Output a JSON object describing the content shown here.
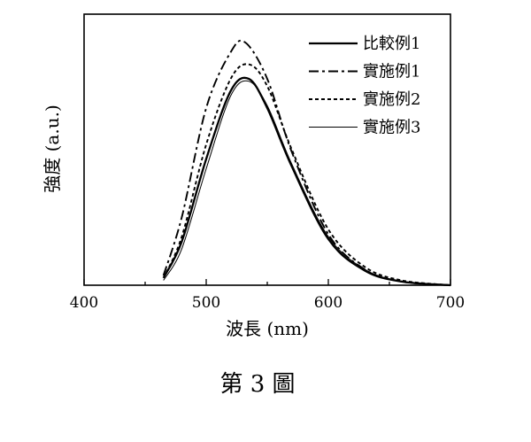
{
  "chart_data": {
    "type": "line",
    "title": "",
    "xlabel": "波長 (nm)",
    "ylabel": "強度 (a.u.)",
    "xlim": [
      400,
      700
    ],
    "ylim": [
      0,
      1.0
    ],
    "x_ticks": [
      400,
      500,
      600,
      700
    ],
    "y_ticks_shown": false,
    "grid": false,
    "legend_position": "top-right",
    "series": [
      {
        "name": "比較例1",
        "style": "solid-thick",
        "x": [
          465,
          480,
          500,
          520,
          535,
          550,
          570,
          600,
          630,
          660,
          700
        ],
        "y": [
          0.03,
          0.18,
          0.52,
          0.8,
          0.85,
          0.73,
          0.49,
          0.19,
          0.06,
          0.015,
          0.0
        ]
      },
      {
        "name": "實施例1",
        "style": "dash-dot",
        "x": [
          465,
          480,
          500,
          520,
          532,
          550,
          570,
          600,
          630,
          660,
          700
        ],
        "y": [
          0.04,
          0.28,
          0.73,
          0.96,
          1.0,
          0.85,
          0.55,
          0.21,
          0.065,
          0.015,
          0.0
        ]
      },
      {
        "name": "實施例2",
        "style": "dashed",
        "x": [
          465,
          480,
          500,
          520,
          535,
          550,
          570,
          600,
          630,
          660,
          700
        ],
        "y": [
          0.03,
          0.2,
          0.58,
          0.85,
          0.91,
          0.82,
          0.56,
          0.23,
          0.075,
          0.02,
          0.0
        ]
      },
      {
        "name": "實施例3",
        "style": "solid-thin",
        "x": [
          465,
          480,
          500,
          520,
          535,
          550,
          570,
          600,
          630,
          660,
          700
        ],
        "y": [
          0.02,
          0.15,
          0.48,
          0.78,
          0.84,
          0.74,
          0.5,
          0.2,
          0.065,
          0.016,
          0.0
        ]
      }
    ]
  },
  "caption": "第 3 圖"
}
